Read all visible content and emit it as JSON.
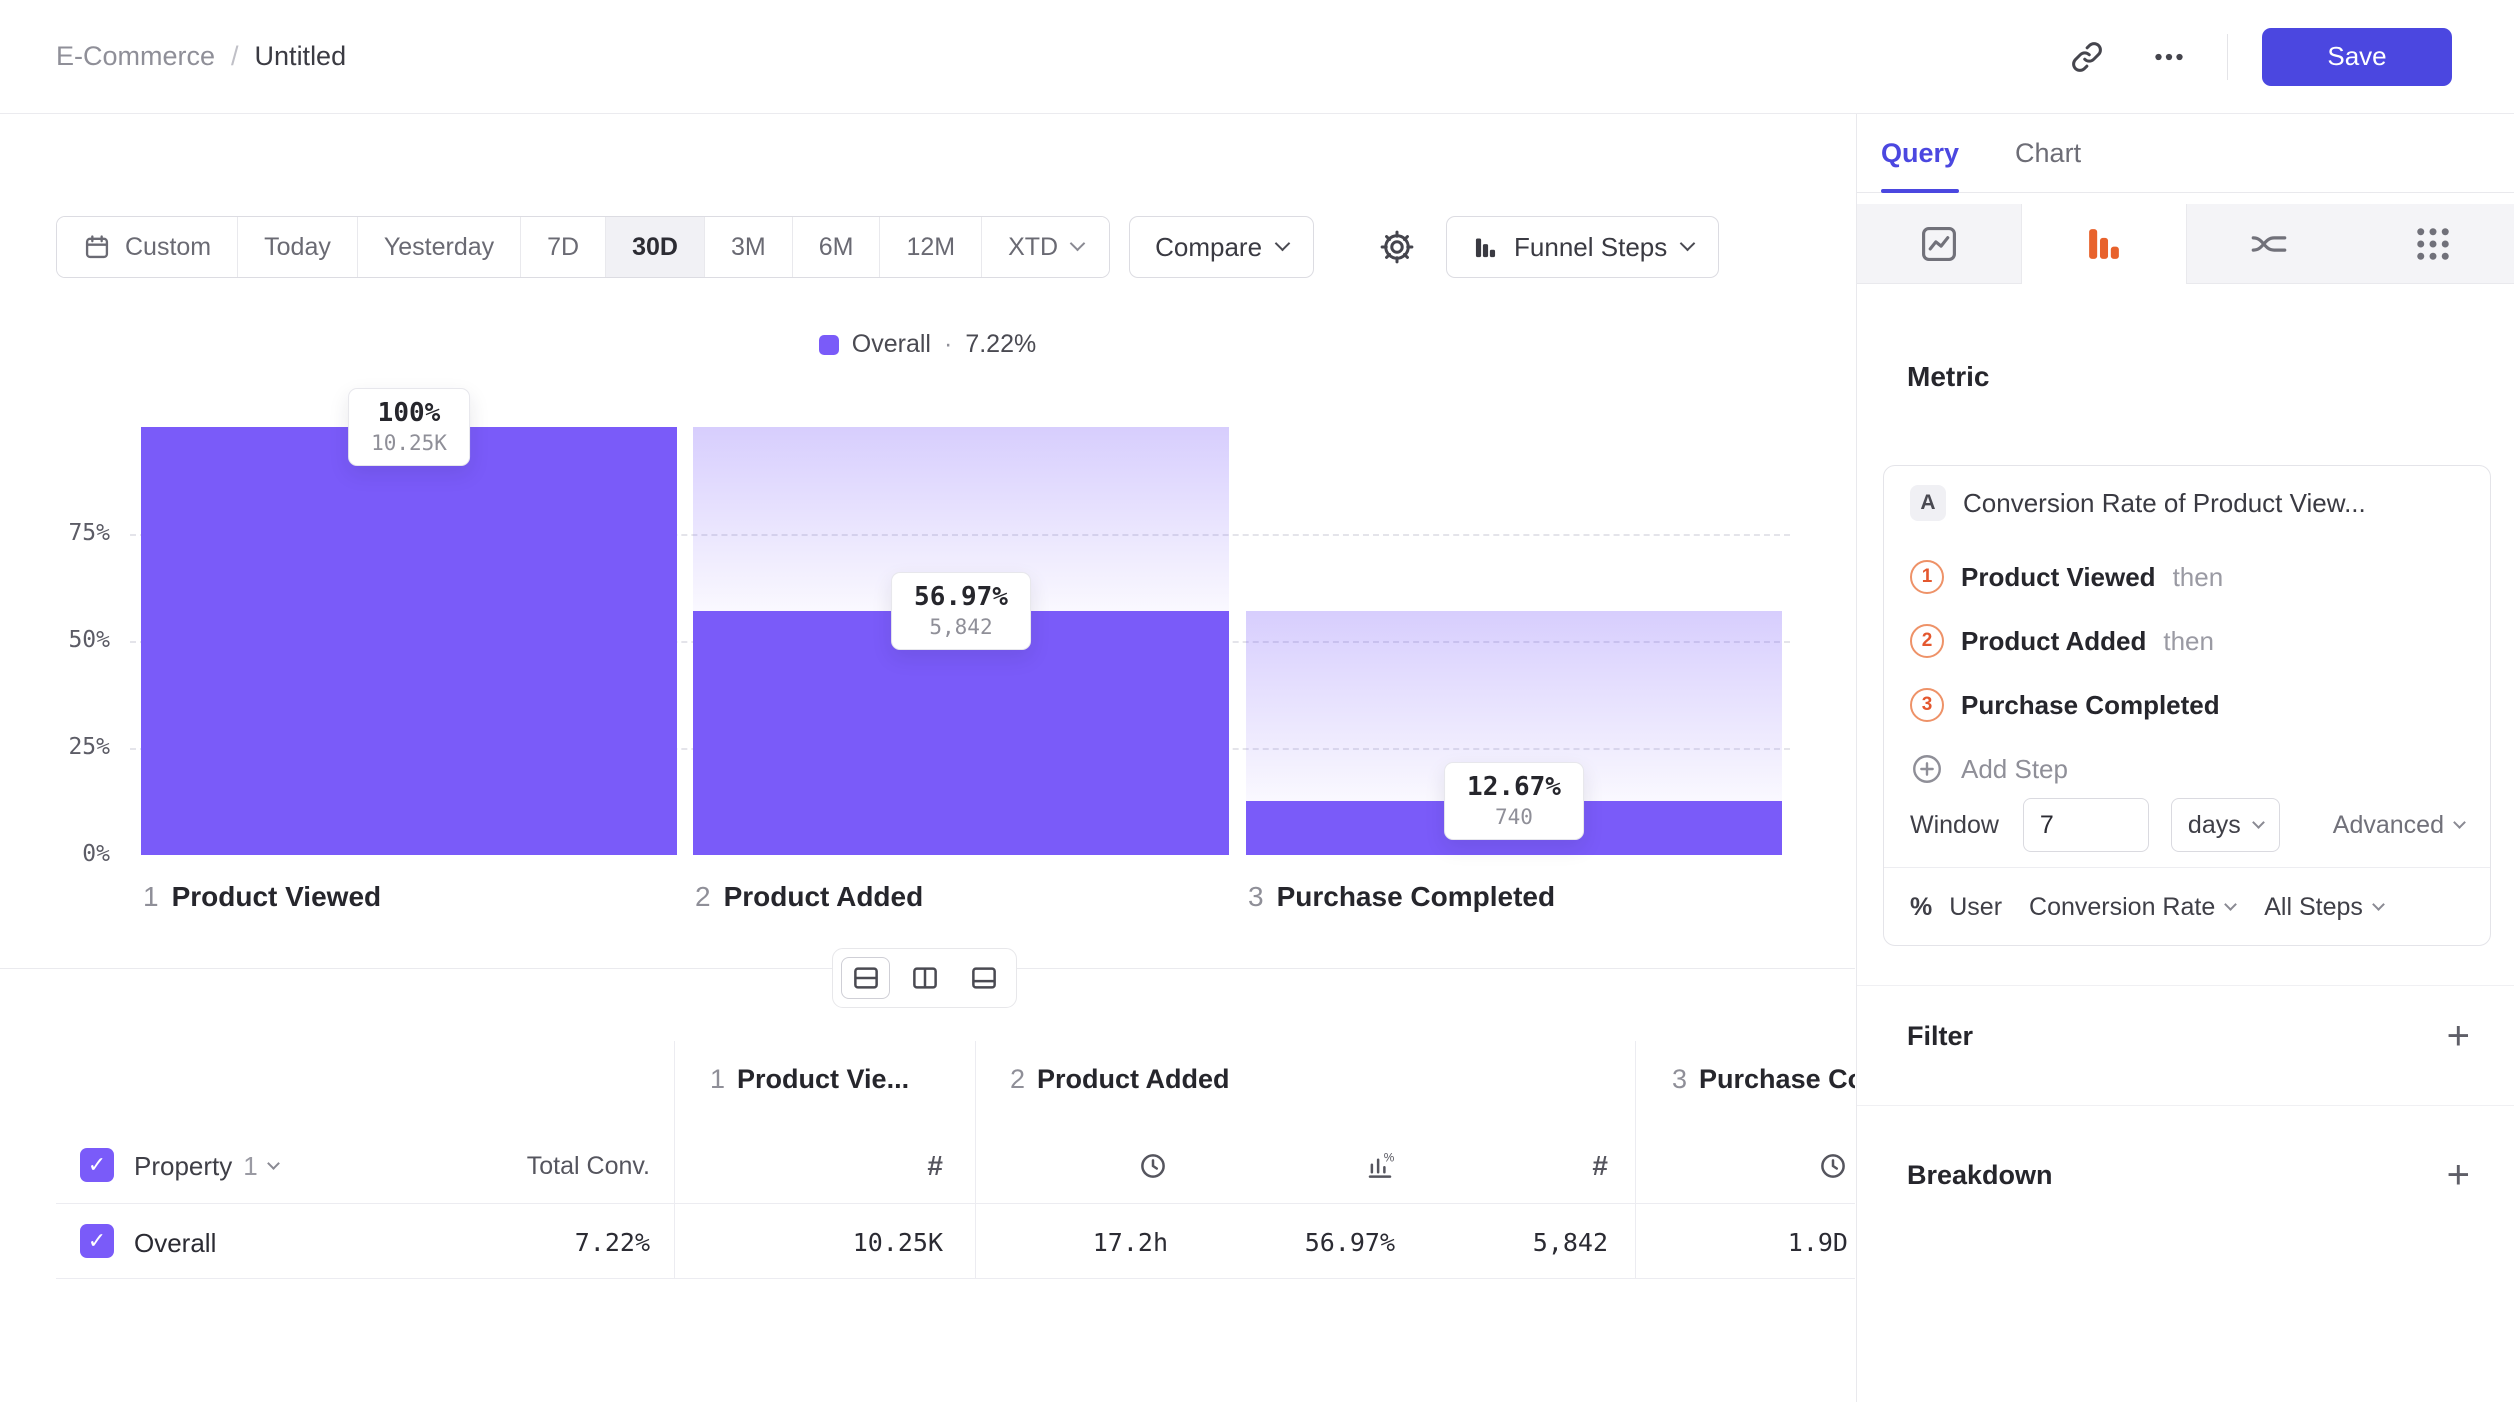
{
  "header": {
    "breadcrumb": {
      "parent": "E-Commerce",
      "separator": "/",
      "current": "Untitled"
    },
    "save_label": "Save"
  },
  "toolbar": {
    "custom_label": "Custom",
    "ranges": [
      "Today",
      "Yesterday",
      "7D",
      "30D",
      "3M",
      "6M",
      "12M"
    ],
    "selected_range": "30D",
    "xtd_label": "XTD",
    "compare_label": "Compare",
    "chart_type_label": "Funnel Steps"
  },
  "legend": {
    "label": "Overall",
    "separator": "·",
    "value": "7.22%"
  },
  "chart_data": {
    "type": "bar",
    "subtype": "funnel",
    "series_label": "Overall",
    "overall_conversion": "7.22%",
    "y_ticks": [
      "75%",
      "50%",
      "25%",
      "0%"
    ],
    "ylim": [
      0,
      100
    ],
    "grid": "dashed-horizontal",
    "bar_color": "#7A5BF9",
    "steps": [
      {
        "index": "1",
        "name": "Product Viewed",
        "conversion_pct": 100,
        "conversion_label": "100%",
        "count": 10250,
        "count_label": "10.25K"
      },
      {
        "index": "2",
        "name": "Product Added",
        "conversion_pct": 56.97,
        "conversion_label": "56.97%",
        "count": 5842,
        "count_label": "5,842"
      },
      {
        "index": "3",
        "name": "Purchase Completed",
        "conversion_pct": 12.67,
        "conversion_label": "12.67%",
        "count": 740,
        "count_label": "740"
      }
    ]
  },
  "table": {
    "property_label": "Property",
    "property_index": "1",
    "total_header": "Total Conv.",
    "groups": [
      {
        "index": "1",
        "name": "Product Vie..."
      },
      {
        "index": "2",
        "name": "Product Added"
      },
      {
        "index": "3",
        "name": "Purchase Completed"
      }
    ],
    "column_icons": [
      "count",
      "avg-time",
      "conversion-rate",
      "count",
      "avg-time"
    ],
    "rows": [
      {
        "label": "Overall",
        "total": "7.22%",
        "values": [
          "10.25K",
          "17.2h",
          "56.97%",
          "5,842",
          "1.9D"
        ]
      }
    ]
  },
  "sidebar": {
    "tabs": [
      {
        "label": "Query"
      },
      {
        "label": "Chart"
      }
    ],
    "metric_heading": "Metric",
    "metric_card": {
      "badge": "A",
      "title": "Conversion Rate of Product View...",
      "steps": [
        {
          "num": "1",
          "name": "Product Viewed",
          "suffix": "then"
        },
        {
          "num": "2",
          "name": "Product Added",
          "suffix": "then"
        },
        {
          "num": "3",
          "name": "Purchase Completed",
          "suffix": ""
        }
      ],
      "add_step_label": "Add Step",
      "window_label": "Window",
      "window_value": "7",
      "window_unit": "days",
      "advanced_label": "Advanced",
      "measure": {
        "prefix": "%",
        "entity": "User",
        "metric": "Conversion Rate",
        "scope": "All Steps"
      }
    },
    "sections": [
      {
        "label": "Filter",
        "action": "+"
      },
      {
        "label": "Breakdown",
        "action": "+"
      }
    ]
  },
  "colors": {
    "accent": "#4B47E0",
    "bar": "#7A5BF9",
    "step-orange": "#E8622C"
  }
}
